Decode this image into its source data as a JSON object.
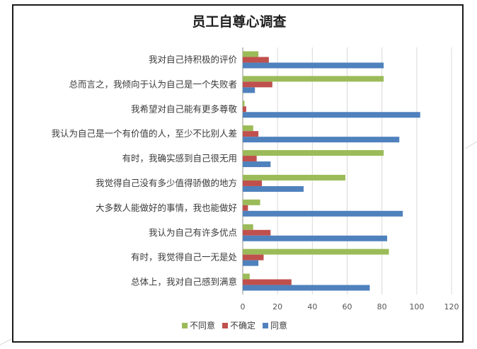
{
  "chart_data": {
    "type": "bar",
    "orientation": "horizontal",
    "title": "员工自尊心调查",
    "xlabel": "",
    "ylabel": "",
    "xlim": [
      0,
      120
    ],
    "ticks": [
      "0",
      "20",
      "40",
      "60",
      "80",
      "100",
      "120"
    ],
    "grid": true,
    "legend_position": "bottom",
    "categories": [
      "我对自己持积极的评价",
      "总而言之，我倾向于认为自己是一个失败者",
      "我希望对自己能有更多尊敬",
      "我认为自己是一个有价值的人，至少不比别人差",
      "有时，我确实感到自己很无用",
      "我觉得自己没有多少值得骄傲的地方",
      "大多数人能做好的事情，我也能做好",
      "我认为自己有许多优点",
      "有时，我觉得自己一无是处",
      "总体上，我对自己感到满意"
    ],
    "series": [
      {
        "name": "不同意",
        "color": "#9bbb59",
        "values": [
          9,
          81,
          1,
          6,
          81,
          59,
          10,
          6,
          84,
          4
        ]
      },
      {
        "name": "不确定",
        "color": "#c0504d",
        "values": [
          15,
          17,
          2,
          9,
          8,
          11,
          3,
          16,
          12,
          28
        ]
      },
      {
        "name": "同意",
        "color": "#4f81bd",
        "values": [
          81,
          7,
          102,
          90,
          16,
          35,
          92,
          83,
          9,
          73
        ]
      }
    ]
  }
}
